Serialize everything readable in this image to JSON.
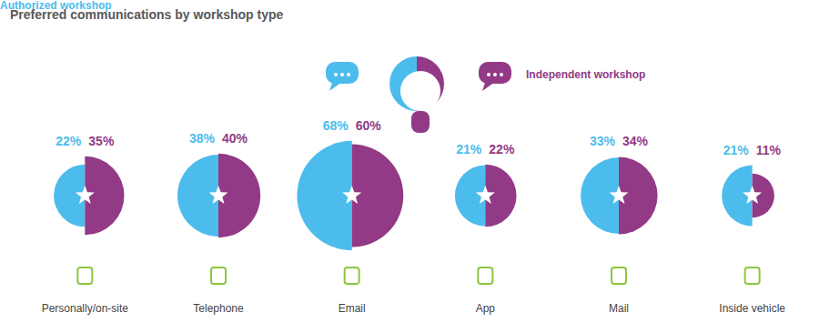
{
  "chart_data": {
    "type": "split_circle",
    "title": "Preferred communications by workshop type",
    "categories": [
      "Personally/on-site",
      "Telephone",
      "Email",
      "App",
      "Mail",
      "Inside vehicle"
    ],
    "series": [
      {
        "name": "Authorized workshop",
        "color": "#4cbcec",
        "values": [
          22,
          38,
          68,
          21,
          33,
          21
        ],
        "value_labels": [
          "22%",
          "38%",
          "68%",
          "21%",
          "33%",
          "21%"
        ]
      },
      {
        "name": "Independent workshop",
        "color": "#923a86",
        "values": [
          35,
          40,
          60,
          22,
          34,
          11
        ],
        "value_labels": [
          "35%",
          "40%",
          "60%",
          "22%",
          "34%",
          "11%"
        ]
      }
    ],
    "data_labels": true,
    "legend": "top"
  }
}
